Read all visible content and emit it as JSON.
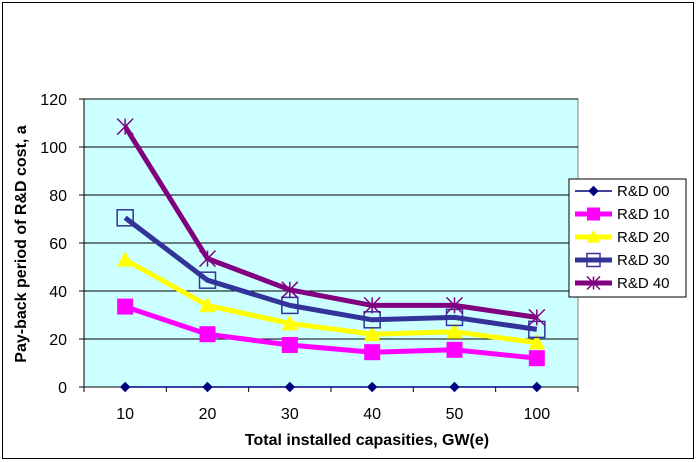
{
  "chart_data": {
    "type": "line",
    "categories": [
      "10",
      "20",
      "30",
      "40",
      "50",
      "100"
    ],
    "ylabel": "Pay-back period of R&D cost, a",
    "xlabel": "Total installed capasities,  GW(e)",
    "ylim": [
      0,
      120
    ],
    "yticks": [
      0,
      20,
      40,
      60,
      80,
      100,
      120
    ],
    "grid": true,
    "plot_background": "#ccffff",
    "legend_position": "right",
    "series": [
      {
        "name": "R&D 00",
        "color": "#000080",
        "marker": "diamond",
        "values": [
          0,
          0,
          0,
          0,
          0,
          0
        ]
      },
      {
        "name": "R&D 10",
        "color": "#ff00ff",
        "marker": "square",
        "values": [
          33.5,
          22,
          17.5,
          14.5,
          15.5,
          12
        ]
      },
      {
        "name": "R&D 20",
        "color": "#ffff00",
        "marker": "triangle",
        "values": [
          53,
          34,
          26.5,
          22,
          23,
          18.5
        ]
      },
      {
        "name": "R&D 30",
        "color": "#333399",
        "marker": "open-square",
        "values": [
          70.5,
          44.5,
          34,
          28,
          29,
          24
        ]
      },
      {
        "name": "R&D 40",
        "color": "#800080",
        "marker": "star",
        "values": [
          108.5,
          53.5,
          40.5,
          34,
          34,
          29
        ]
      }
    ]
  }
}
